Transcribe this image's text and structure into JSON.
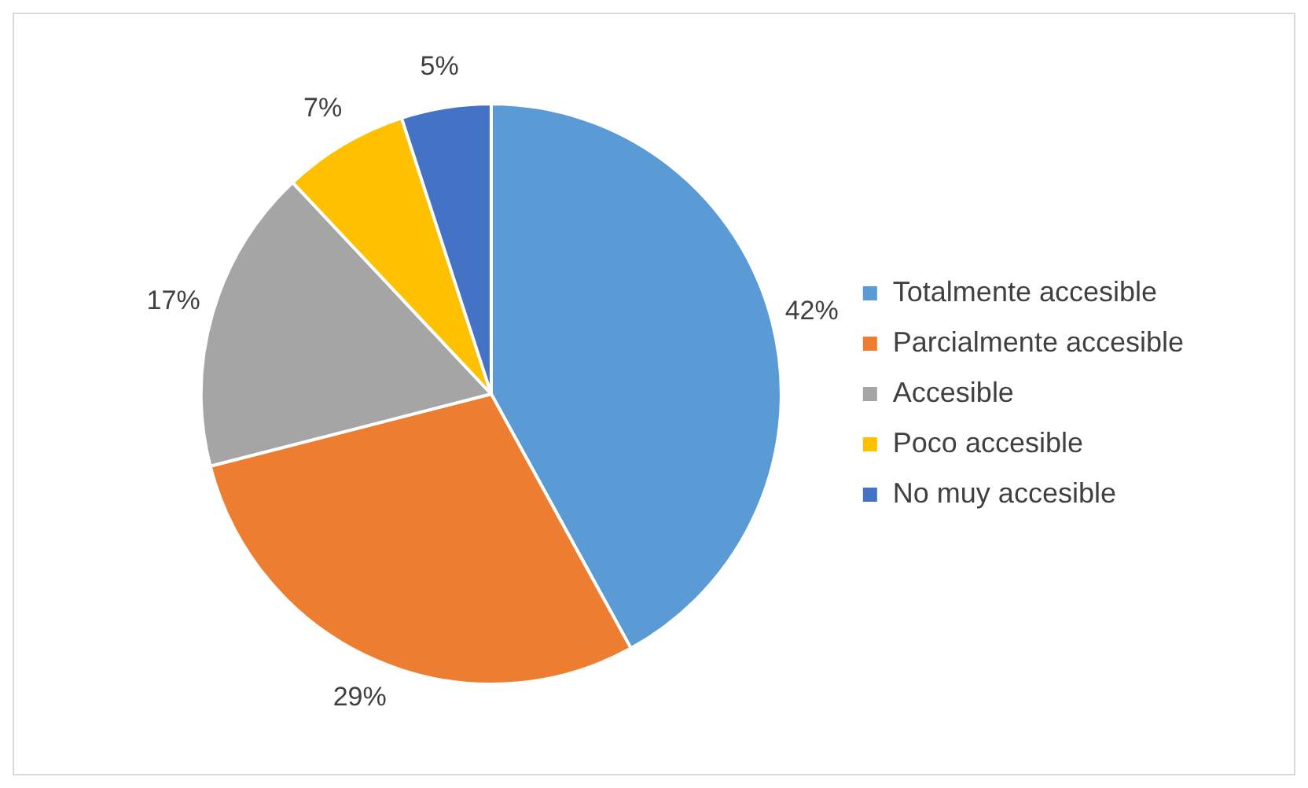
{
  "chart_data": {
    "type": "pie",
    "categories": [
      "Totalmente accesible",
      "Parcialmente accesible",
      "Accesible",
      "Poco accesible",
      "No muy accesible"
    ],
    "values": [
      42,
      29,
      17,
      7,
      5
    ],
    "colors": [
      "#5b9bd5",
      "#ed7d31",
      "#a5a5a5",
      "#ffc000",
      "#4472c4"
    ],
    "value_labels": [
      "42%",
      "29%",
      "17%",
      "7%",
      "5%"
    ],
    "legend": "right"
  }
}
